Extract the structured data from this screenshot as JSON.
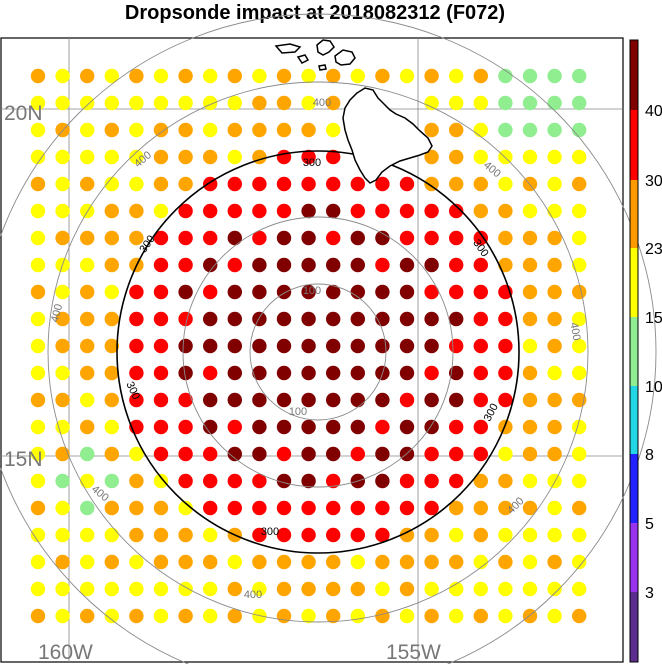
{
  "title": "Dropsonde impact at 2018082312 (F072)",
  "lat_labels": [
    "20N",
    "15N"
  ],
  "lon_labels": [
    "160W",
    "155W"
  ],
  "contour_labels": {
    "inner": "100",
    "main": "300",
    "outer": "400"
  },
  "colorbar": {
    "labels": [
      "40",
      "30",
      "23",
      "15",
      "10",
      "8",
      "5",
      "3"
    ],
    "colors": [
      "#5b2d8e",
      "#8c2fd3",
      "#1f1fcc",
      "#2222ff",
      "#22d6e6",
      "#90ee90",
      "#ffff00",
      "#ffa500",
      "#ff9900",
      "#ff0000",
      "#8b0000"
    ]
  },
  "value_colors": {
    "dark_red": "#800000",
    "red": "#ff0000",
    "orange": "#ffa500",
    "yellow": "#ffff00",
    "light_green": "#90ee90"
  }
}
